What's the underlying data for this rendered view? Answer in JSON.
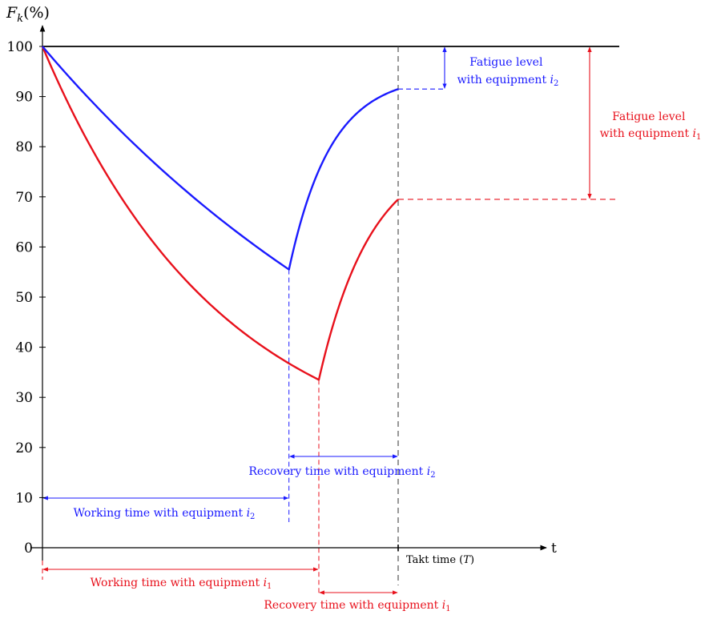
{
  "chart_data": {
    "type": "line",
    "ylabel_main": "F",
    "ylabel_sub": "k",
    "ylabel_suffix": "(%)",
    "xlabel": "t",
    "ylim": [
      0,
      100
    ],
    "yticks": [
      0,
      10,
      20,
      30,
      40,
      50,
      60,
      70,
      80,
      90,
      100
    ],
    "ytick_labels": [
      "0",
      "10",
      "20",
      "30",
      "40",
      "50",
      "60",
      "70",
      "80",
      "90",
      "100"
    ],
    "takt_time": 10,
    "takt_label": "Takt time (",
    "takt_symbol": "T",
    "takt_label_end": ")",
    "colors": {
      "i1": "#e8111c",
      "i2": "#1a1aff",
      "axis": "#000000"
    },
    "series": [
      {
        "id": "i2",
        "working_time": 6.93,
        "valley": 55.5,
        "end_value": 91.5,
        "decay_curvature": 0.55,
        "recovery_curvature": 2.6
      },
      {
        "id": "i1",
        "working_time": 7.77,
        "valley": 33.5,
        "end_value": 69.5,
        "decay_curvature": 1.55,
        "recovery_curvature": 1.5
      }
    ],
    "annotations": {
      "fatigue_i2": {
        "line1": "Fatigue level",
        "line2": "with equipment ",
        "sym": "i",
        "sub": "2"
      },
      "fatigue_i1": {
        "line1": "Fatigue level",
        "line2": "with equipment ",
        "sym": "i",
        "sub": "1"
      },
      "recovery_i2": {
        "text": "Recovery time with equipment ",
        "sym": "i",
        "sub": "2"
      },
      "working_i2": {
        "text": "Working time with equipment ",
        "sym": "i",
        "sub": "2"
      },
      "working_i1": {
        "text": "Working time with equipment ",
        "sym": "i",
        "sub": "1"
      },
      "recovery_i1": {
        "text": "Recovery time with equipment ",
        "sym": "i",
        "sub": "1"
      }
    }
  }
}
